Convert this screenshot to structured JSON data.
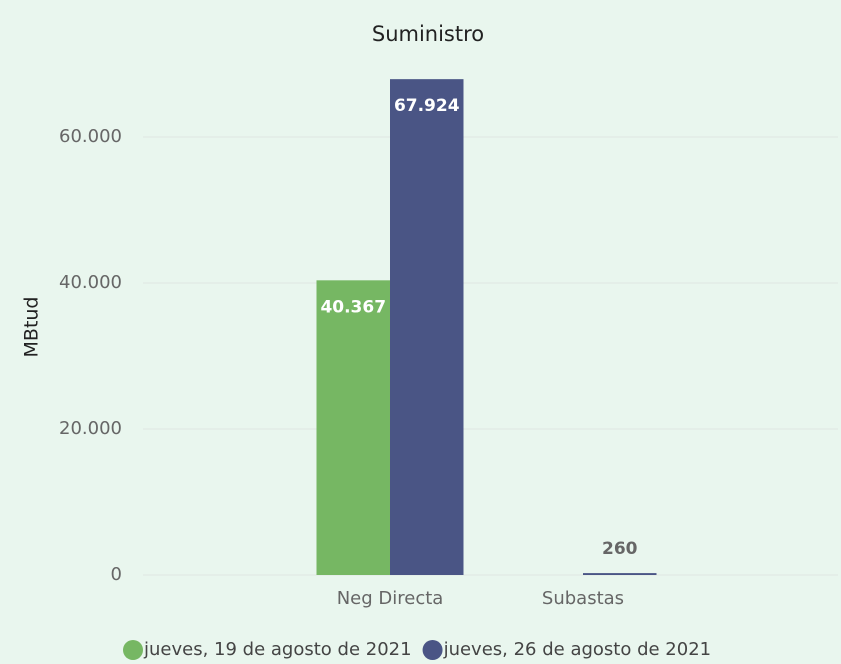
{
  "chart_data": {
    "type": "bar",
    "title": "Suministro",
    "y_label": "MBtud",
    "categories": [
      "Neg Directa",
      "Subastas"
    ],
    "series": [
      {
        "name": "jueves, 19 de agosto de 2021",
        "color": "#76b763",
        "values": [
          40367,
          null
        ],
        "value_labels": [
          "40.367",
          null
        ]
      },
      {
        "name": "jueves, 26 de agosto de 2021",
        "color": "#4a5585",
        "values": [
          67924,
          260
        ],
        "value_labels": [
          "67.924",
          "260"
        ]
      }
    ],
    "ylim": [
      0,
      70000
    ],
    "yticks": [
      0,
      {
        "value": 20000,
        "label": "20.000"
      },
      {
        "value": 40000,
        "label": "40.000"
      },
      {
        "value": 60000,
        "label": "60.000"
      }
    ],
    "grid": true,
    "legend": "bottom"
  }
}
